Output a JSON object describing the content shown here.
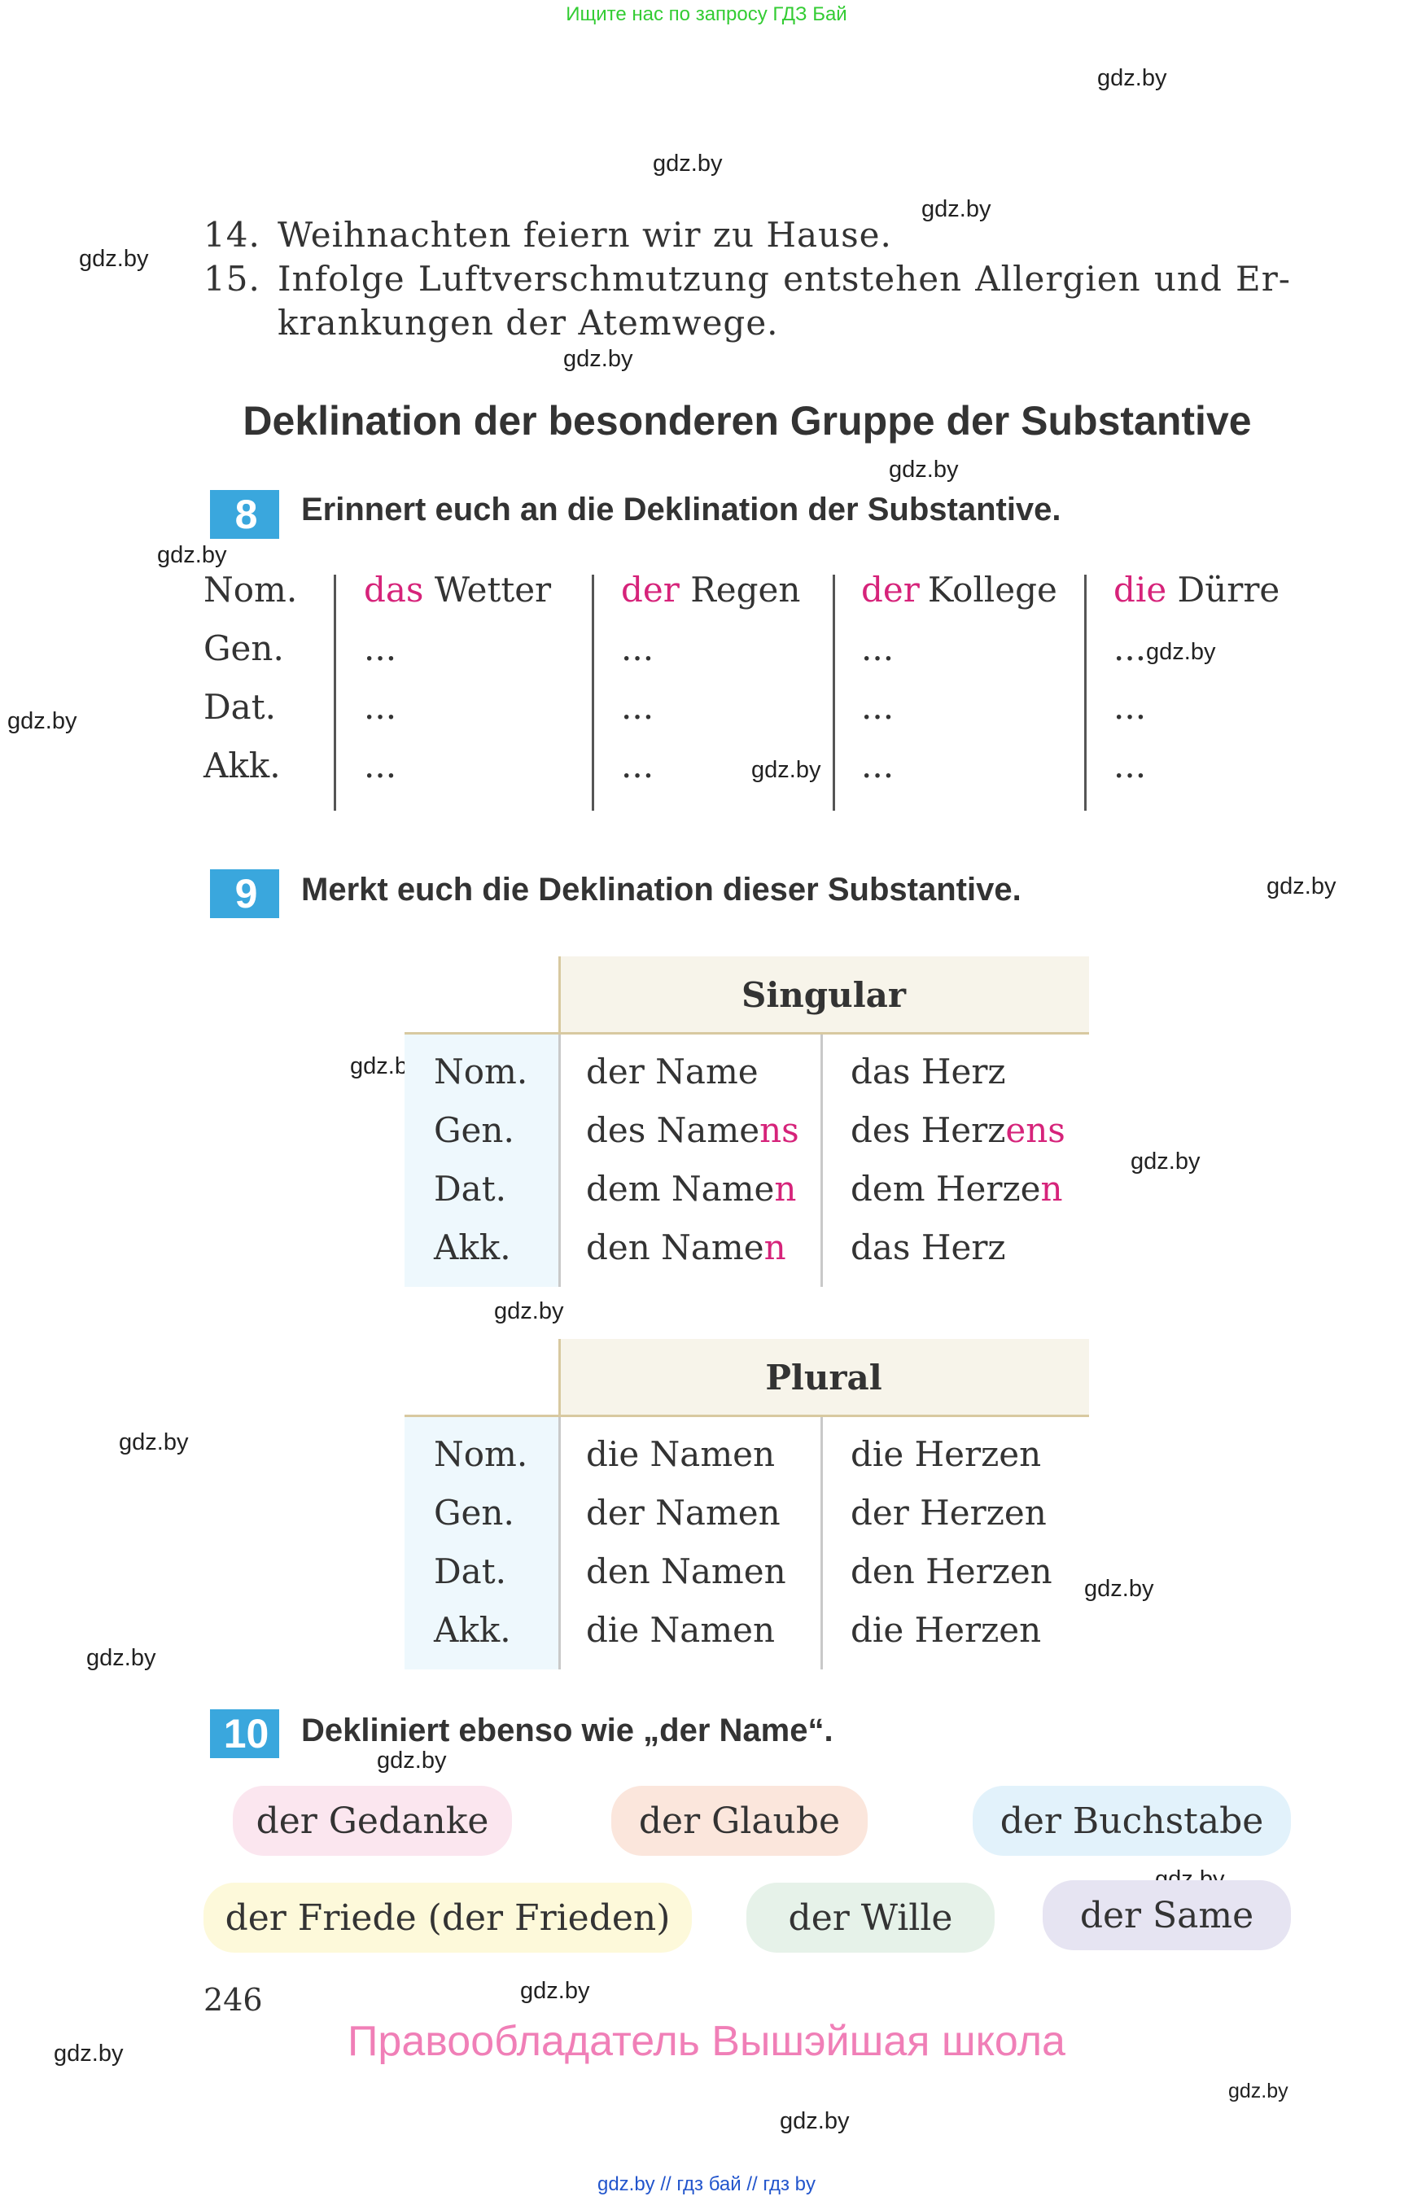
{
  "top_note": "Ищите нас по запросу ГДЗ Бай",
  "watermark": "gdz.by",
  "sentences": [
    {
      "num": "14.",
      "lines": [
        "Weihnachten feiern wir zu Hause."
      ]
    },
    {
      "num": "15.",
      "lines": [
        "Infolge Luftverschmutzung entstehen Allergien und Er-",
        "krankungen der Atemwege."
      ]
    }
  ],
  "section_heading": "Deklination der besonderen Gruppe der Substantive",
  "exercise8": {
    "number": "8",
    "title": "Erinnert euch an die Deklination der Substantive.",
    "cases": [
      "Nom.",
      "Gen.",
      "Dat.",
      "Akk."
    ],
    "columns": [
      {
        "article": "das",
        "noun": "Wetter"
      },
      {
        "article": "der",
        "noun": "Regen"
      },
      {
        "article": "der",
        "noun": "Kollege"
      },
      {
        "article": "die",
        "noun": "Dürre"
      }
    ],
    "placeholder": "..."
  },
  "exercise9": {
    "number": "9",
    "title": "Merkt euch die Deklination dieser Substantive.",
    "singular_header": "Singular",
    "plural_header": "Plural",
    "cases": [
      "Nom.",
      "Gen.",
      "Dat.",
      "Akk."
    ],
    "singular": [
      [
        {
          "base": "der Name",
          "ending": ""
        },
        {
          "base": "das Herz",
          "ending": ""
        }
      ],
      [
        {
          "base": "des Name",
          "ending": "ns"
        },
        {
          "base": "des Herz",
          "ending": "ens"
        }
      ],
      [
        {
          "base": "dem Name",
          "ending": "n"
        },
        {
          "base": "dem Herze",
          "ending": "n"
        }
      ],
      [
        {
          "base": "den Name",
          "ending": "n"
        },
        {
          "base": "das Herz",
          "ending": ""
        }
      ]
    ],
    "plural": [
      [
        "die Namen",
        "die Herzen"
      ],
      [
        "der Namen",
        "der Herzen"
      ],
      [
        "den Namen",
        "den Herzen"
      ],
      [
        "die Namen",
        "die Herzen"
      ]
    ]
  },
  "exercise10": {
    "number": "10",
    "title": "Dekliniert ebenso wie „der Name“.",
    "words": [
      {
        "text": "der Gedanke",
        "color": "#fbe6ef"
      },
      {
        "text": "der Glaube",
        "color": "#fbe6dc"
      },
      {
        "text": "der Buchstabe",
        "color": "#e2f2fb"
      },
      {
        "text": "der Friede (der Frieden)",
        "color": "#fdf9da"
      },
      {
        "text": "der Wille",
        "color": "#e6f2e9"
      },
      {
        "text": "der Same",
        "color": "#e6e4f2"
      }
    ]
  },
  "page_number": "246",
  "copyright": "Правообладатель Вышэйшая школа",
  "footer": "gdz.by  //  гдз бай  //  гдз by",
  "colors": {
    "accent_blue": "#3aa7dd",
    "highlight_pink": "#d6237a",
    "copyright_pink": "#f07fb7"
  }
}
